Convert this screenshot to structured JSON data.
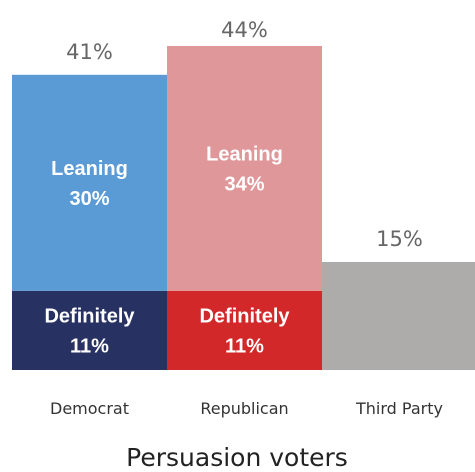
{
  "chart_data": {
    "type": "bar",
    "stacked": true,
    "title": "Persuasion voters",
    "ylim": [
      0,
      50
    ],
    "categories": [
      "Democrat",
      "Republican",
      "Third Party"
    ],
    "totals": [
      41,
      44,
      15
    ],
    "total_labels": [
      "41%",
      "44%",
      "15%"
    ],
    "series": [
      {
        "name": "Definitely",
        "values": [
          11,
          11,
          0
        ],
        "segment_labels": [
          [
            "Definitely",
            "11%"
          ],
          [
            "Definitely",
            "11%"
          ],
          null
        ],
        "colors": [
          "#283262",
          "#d2282a",
          "#aeabab"
        ]
      },
      {
        "name": "Leaning",
        "values": [
          30,
          34,
          15
        ],
        "segment_labels": [
          [
            "Leaning",
            "30%"
          ],
          [
            "Leaning",
            "34%"
          ],
          null
        ],
        "colors": [
          "#5b9bd5",
          "#e0979a",
          "#aeabab"
        ]
      }
    ]
  }
}
